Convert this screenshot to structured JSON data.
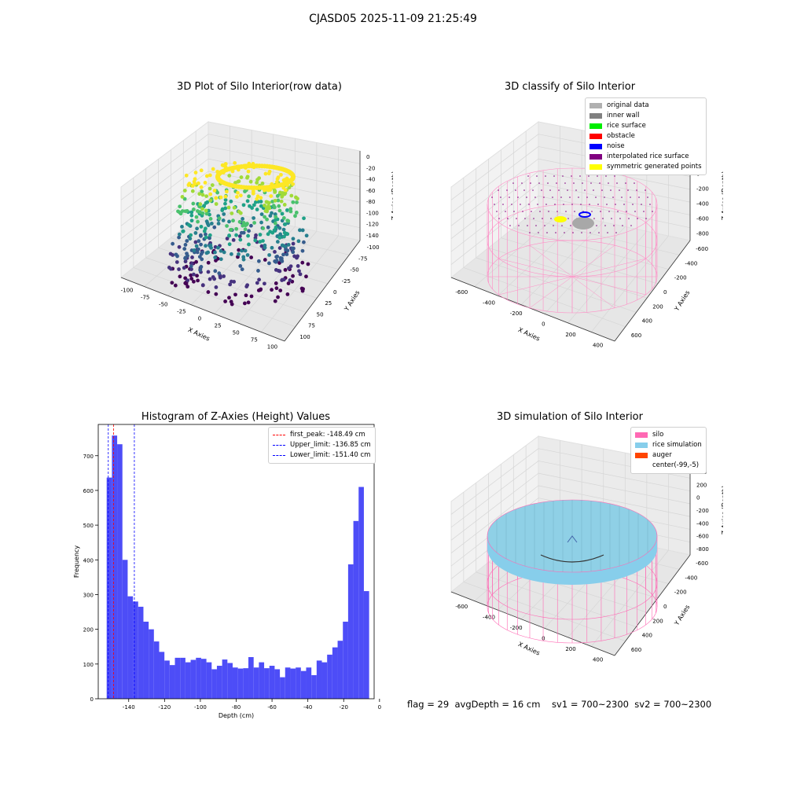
{
  "suptitle": "CJASD05 2025-11-09 21:25:49",
  "panels": {
    "raw": {
      "title": "3D Plot of Silo Interior(row data)",
      "xlabel": "X Axies",
      "ylabel": "Y Axies",
      "zlabel": "Z Axies (Depth)",
      "xticks": [
        "-100",
        "-75",
        "-50",
        "-25",
        "0",
        "25",
        "50",
        "75",
        "100"
      ],
      "yticks": [
        "100",
        "75",
        "50",
        "25",
        "0",
        "-25",
        "-50",
        "-75",
        "-100"
      ],
      "zticks": [
        "0",
        "-20",
        "-40",
        "-60",
        "-80",
        "-100",
        "-120",
        "-140"
      ]
    },
    "classify": {
      "title": "3D classify of Silo Interior",
      "xlabel": "X Axies",
      "ylabel": "Y Axies",
      "zlabel": "Z Axies (Depth)",
      "xticks": [
        "-600",
        "-400",
        "-200",
        "0",
        "200",
        "400"
      ],
      "yticks": [
        "600",
        "400",
        "200",
        "0",
        "-200",
        "-400",
        "-600"
      ],
      "zticks": [
        "200",
        "0",
        "-200",
        "-400",
        "-600",
        "-800"
      ],
      "legend": [
        {
          "label": "original data",
          "color": "#b0b0b0"
        },
        {
          "label": "inner wall",
          "color": "#808080"
        },
        {
          "label": "rice surface",
          "color": "#00ee00"
        },
        {
          "label": "obstacle",
          "color": "#ff0000"
        },
        {
          "label": "noise",
          "color": "#0000ff"
        },
        {
          "label": "interpolated rice surface",
          "color": "#800080"
        },
        {
          "label": "symmetric generated points",
          "color": "#ffff00"
        }
      ]
    },
    "simulation": {
      "title": "3D simulation of Silo Interior",
      "xlabel": "X Axies",
      "ylabel": "Y Axies",
      "zlabel": "Z Axies (Depth)",
      "xticks": [
        "-600",
        "-400",
        "-200",
        "0",
        "200",
        "400"
      ],
      "yticks": [
        "600",
        "400",
        "200",
        "0",
        "-200",
        "-400",
        "-600"
      ],
      "zticks": [
        "400",
        "200",
        "0",
        "-200",
        "-400",
        "-600",
        "-800"
      ],
      "legend": [
        {
          "label": "silo",
          "color": "#ff69b4"
        },
        {
          "label": "rice simulation",
          "color": "#87ceeb"
        },
        {
          "label": "auger",
          "color": "#ff4500"
        },
        {
          "label": "center(-99,-5)",
          "color": "none"
        }
      ]
    }
  },
  "chart_data": {
    "type": "bar",
    "title": "Histogram of Z-Axies (Height) Values",
    "xlabel": "Depth (cm)",
    "ylabel": "Frequency",
    "xlim": [
      -157,
      -3
    ],
    "ylim": [
      0,
      790
    ],
    "xticks": [
      -140,
      -120,
      -100,
      -80,
      -60,
      -40,
      -20,
      0
    ],
    "yticks": [
      0,
      100,
      200,
      300,
      400,
      500,
      600,
      700
    ],
    "bar_color": "#4d4df7",
    "bin_width": 2.93,
    "bin_start": -152.3,
    "values": [
      637,
      758,
      733,
      400,
      295,
      280,
      265,
      222,
      200,
      165,
      135,
      110,
      97,
      118,
      118,
      105,
      112,
      118,
      115,
      105,
      85,
      95,
      113,
      103,
      90,
      87,
      88,
      120,
      90,
      105,
      88,
      95,
      85,
      62,
      90,
      87,
      90,
      80,
      90,
      68,
      110,
      105,
      127,
      148,
      167,
      222,
      387,
      512,
      610,
      310
    ],
    "vlines": [
      {
        "label": "first_peak: -148.49 cm",
        "x": -148.49,
        "color": "#ff0000"
      },
      {
        "label": "Upper_limit: -136.85 cm",
        "x": -136.85,
        "color": "#0000ff"
      },
      {
        "label": "Lower_limit: -151.40 cm",
        "x": -151.4,
        "color": "#0000ff"
      }
    ]
  },
  "footer": "flag = 29  avgDepth = 16 cm    sv1 = 700~2300  sv2 = 700~2300"
}
